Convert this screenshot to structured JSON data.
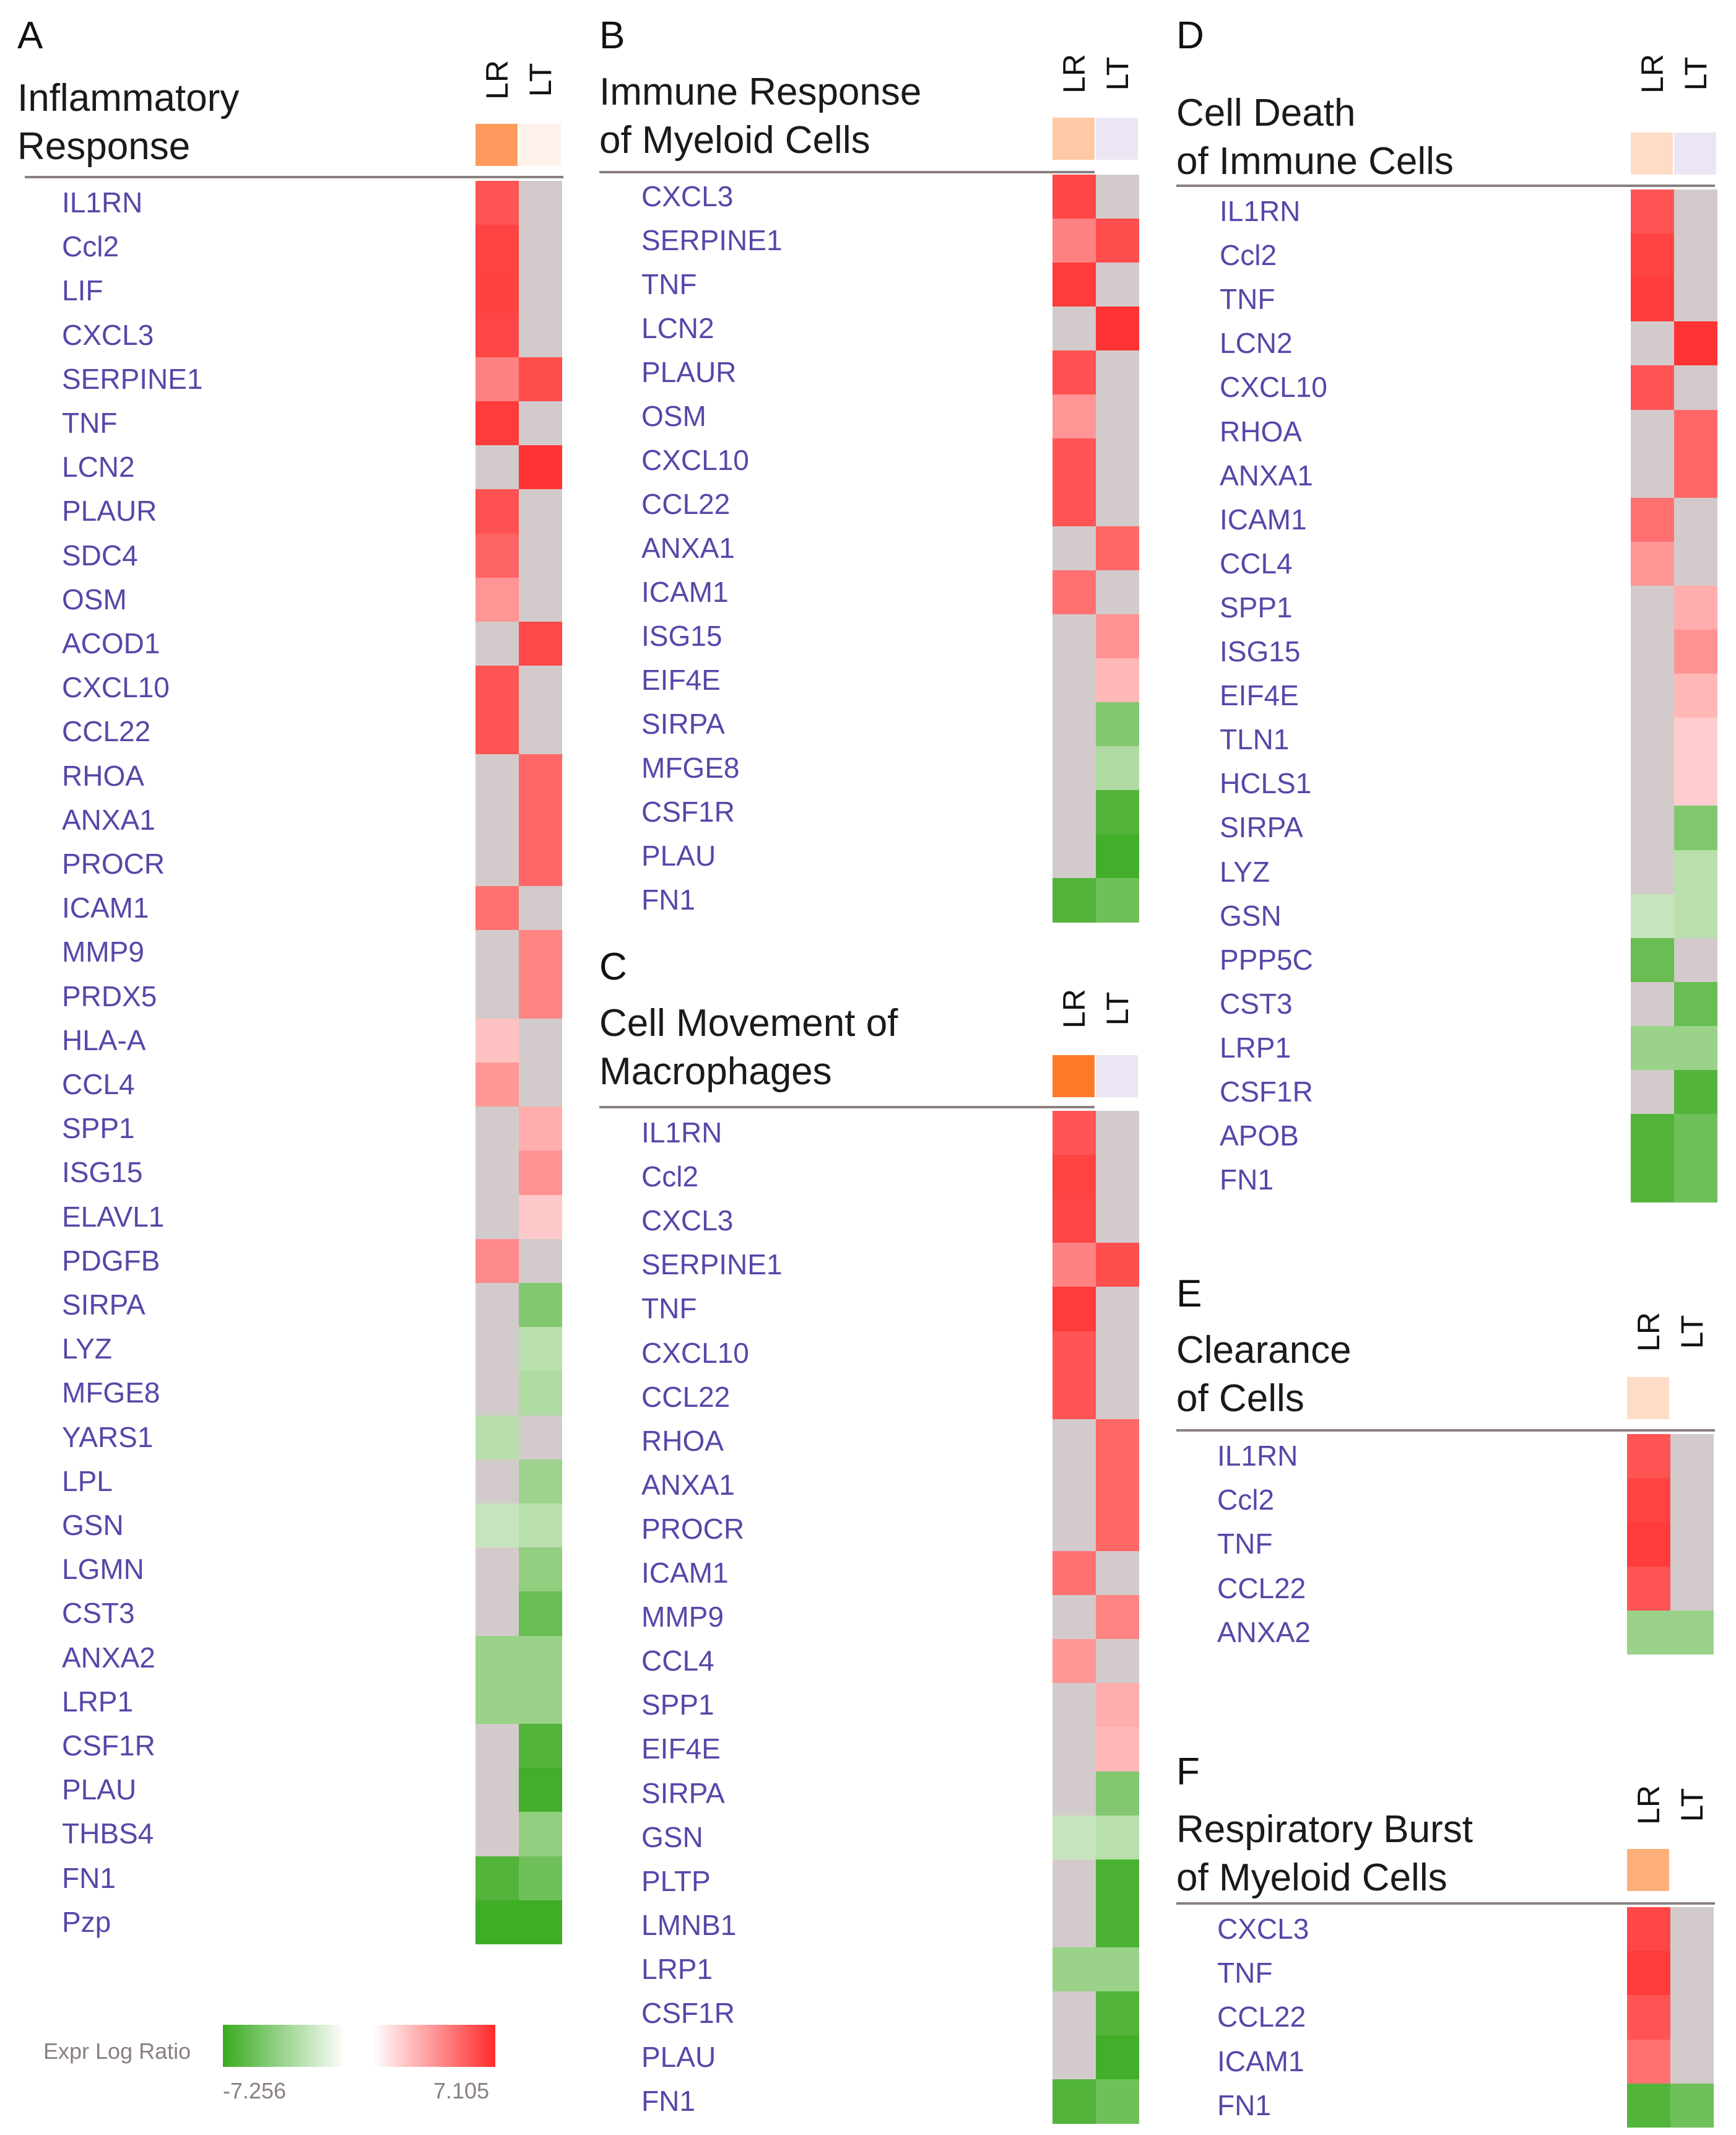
{
  "colors": {
    "neutral": "#d3cbcb",
    "gene_text": "#5548a8",
    "red_full": "#ff2b2b",
    "green_full": "#3aaa20"
  },
  "legend": {
    "label": "Expr Log Ratio",
    "min_label": "-7.256",
    "max_label": "7.105",
    "min": -7.256,
    "max": 7.105
  },
  "chart_data": [
    {
      "panel": "A",
      "title_lines": [
        "Inflammatory",
        "Response"
      ],
      "columns": [
        "LR",
        "LT"
      ],
      "header_colors": [
        "#ff9a5c",
        "#fff2ec"
      ],
      "type": "heatmap",
      "genes": [
        "IL1RN",
        "Ccl2",
        "LIF",
        "CXCL3",
        "SERPINE1",
        "TNF",
        "LCN2",
        "PLAUR",
        "SDC4",
        "OSM",
        "ACOD1",
        "CXCL10",
        "CCL22",
        "RHOA",
        "ANXA1",
        "PROCR",
        "ICAM1",
        "MMP9",
        "PRDX5",
        "HLA-A",
        "CCL4",
        "SPP1",
        "ISG15",
        "ELAVL1",
        "PDGFB",
        "SIRPA",
        "LYZ",
        "MFGE8",
        "YARS1",
        "LPL",
        "GSN",
        "LGMN",
        "CST3",
        "ANXA2",
        "LRP1",
        "CSF1R",
        "PLAU",
        "THBS4",
        "FN1",
        "Pzp"
      ],
      "values": [
        [
          5.6,
          0
        ],
        [
          6.2,
          0
        ],
        [
          6.3,
          0
        ],
        [
          6.1,
          0
        ],
        [
          3.9,
          5.8
        ],
        [
          6.5,
          0
        ],
        [
          0,
          6.8
        ],
        [
          5.7,
          0
        ],
        [
          5.0,
          0
        ],
        [
          3.2,
          0
        ],
        [
          0,
          6.0
        ],
        [
          5.6,
          0
        ],
        [
          5.6,
          0
        ],
        [
          0,
          4.9
        ],
        [
          0,
          4.9
        ],
        [
          0,
          4.9
        ],
        [
          4.5,
          0
        ],
        [
          0,
          3.8
        ],
        [
          0,
          3.8
        ],
        [
          1.5,
          0
        ],
        [
          3.1,
          0
        ],
        [
          0,
          2.3
        ],
        [
          0,
          3.3
        ],
        [
          0,
          1.3
        ],
        [
          3.6,
          0
        ],
        [
          0,
          -4.2
        ],
        [
          0,
          -1.9
        ],
        [
          0,
          -2.3
        ],
        [
          -2.0,
          0
        ],
        [
          0,
          -3.1
        ],
        [
          -1.3,
          -1.9
        ],
        [
          0,
          -3.6
        ],
        [
          0,
          -5.3
        ],
        [
          -3.2,
          -3.2
        ],
        [
          -3.2,
          -3.2
        ],
        [
          0,
          -6.2
        ],
        [
          0,
          -6.9
        ],
        [
          0,
          -3.6
        ],
        [
          -6.2,
          -5.0
        ],
        [
          -7.0,
          -7.0
        ]
      ]
    },
    {
      "panel": "B",
      "title_lines": [
        "Immune Response",
        "of Myeloid Cells"
      ],
      "columns": [
        "LR",
        "LT"
      ],
      "header_colors": [
        "#ffc9a6",
        "#ece6f4"
      ],
      "type": "heatmap",
      "genes": [
        "CXCL3",
        "SERPINE1",
        "TNF",
        "LCN2",
        "PLAUR",
        "OSM",
        "CXCL10",
        "CCL22",
        "ANXA1",
        "ICAM1",
        "ISG15",
        "EIF4E",
        "SIRPA",
        "MFGE8",
        "CSF1R",
        "PLAU",
        "FN1"
      ],
      "values": [
        [
          6.1,
          0
        ],
        [
          3.9,
          5.8
        ],
        [
          6.5,
          0
        ],
        [
          0,
          6.8
        ],
        [
          5.7,
          0
        ],
        [
          3.2,
          0
        ],
        [
          5.6,
          0
        ],
        [
          5.6,
          0
        ],
        [
          0,
          4.9
        ],
        [
          4.5,
          0
        ],
        [
          0,
          3.3
        ],
        [
          0,
          1.9
        ],
        [
          0,
          -4.2
        ],
        [
          0,
          -2.3
        ],
        [
          0,
          -6.2
        ],
        [
          0,
          -6.9
        ],
        [
          -6.2,
          -5.0
        ]
      ]
    },
    {
      "panel": "C",
      "title_lines": [
        "Cell Movement of",
        "Macrophages"
      ],
      "columns": [
        "LR",
        "LT"
      ],
      "header_colors": [
        "#ff7a28",
        "#ece6f4"
      ],
      "type": "heatmap",
      "genes": [
        "IL1RN",
        "Ccl2",
        "CXCL3",
        "SERPINE1",
        "TNF",
        "CXCL10",
        "CCL22",
        "RHOA",
        "ANXA1",
        "PROCR",
        "ICAM1",
        "MMP9",
        "CCL4",
        "SPP1",
        "EIF4E",
        "SIRPA",
        "GSN",
        "PLTP",
        "LMNB1",
        "LRP1",
        "CSF1R",
        "PLAU",
        "FN1"
      ],
      "values": [
        [
          5.6,
          0
        ],
        [
          6.2,
          0
        ],
        [
          6.1,
          0
        ],
        [
          3.9,
          5.8
        ],
        [
          6.5,
          0
        ],
        [
          5.6,
          0
        ],
        [
          5.6,
          0
        ],
        [
          0,
          4.9
        ],
        [
          0,
          4.9
        ],
        [
          0,
          4.9
        ],
        [
          4.5,
          0
        ],
        [
          0,
          3.8
        ],
        [
          3.1,
          0
        ],
        [
          0,
          2.3
        ],
        [
          0,
          1.9
        ],
        [
          0,
          -4.2
        ],
        [
          -1.3,
          -1.9
        ],
        [
          0,
          -6.5
        ],
        [
          0,
          -6.5
        ],
        [
          -3.2,
          -3.2
        ],
        [
          0,
          -6.2
        ],
        [
          0,
          -6.9
        ],
        [
          -6.2,
          -5.0
        ]
      ]
    },
    {
      "panel": "D",
      "title_lines": [
        "Cell Death",
        "of Immune Cells"
      ],
      "columns": [
        "LR",
        "LT"
      ],
      "header_colors": [
        "#ffdcc6",
        "#ece6f4"
      ],
      "type": "heatmap",
      "genes": [
        "IL1RN",
        "Ccl2",
        "TNF",
        "LCN2",
        "CXCL10",
        "RHOA",
        "ANXA1",
        "ICAM1",
        "CCL4",
        "SPP1",
        "ISG15",
        "EIF4E",
        "TLN1",
        "HCLS1",
        "SIRPA",
        "LYZ",
        "GSN",
        "PPP5C",
        "CST3",
        "LRP1",
        "CSF1R",
        "APOB",
        "FN1"
      ],
      "values": [
        [
          5.6,
          0
        ],
        [
          6.2,
          0
        ],
        [
          6.5,
          0
        ],
        [
          0,
          6.8
        ],
        [
          5.6,
          0
        ],
        [
          0,
          4.9
        ],
        [
          0,
          4.9
        ],
        [
          4.5,
          0
        ],
        [
          3.1,
          0
        ],
        [
          0,
          2.3
        ],
        [
          0,
          3.3
        ],
        [
          0,
          1.9
        ],
        [
          0,
          1.1
        ],
        [
          0,
          1.1
        ],
        [
          0,
          -4.2
        ],
        [
          0,
          -1.9
        ],
        [
          -1.3,
          -1.9
        ],
        [
          -5.3,
          0
        ],
        [
          0,
          -5.3
        ],
        [
          -3.2,
          -3.2
        ],
        [
          0,
          -6.2
        ],
        [
          -6.2,
          -5.0
        ],
        [
          -6.2,
          -5.0
        ]
      ]
    },
    {
      "panel": "E",
      "title_lines": [
        "Clearance",
        "of Cells"
      ],
      "columns": [
        "LR",
        "LT"
      ],
      "header_colors": [
        "#ffdcc6",
        "#ffffff"
      ],
      "type": "heatmap",
      "genes": [
        "IL1RN",
        "Ccl2",
        "TNF",
        "CCL22",
        "ANXA2"
      ],
      "values": [
        [
          5.6,
          0
        ],
        [
          6.2,
          0
        ],
        [
          6.5,
          0
        ],
        [
          5.6,
          0
        ],
        [
          -3.2,
          -3.2
        ]
      ]
    },
    {
      "panel": "F",
      "title_lines": [
        "Respiratory Burst",
        "of Myeloid Cells"
      ],
      "columns": [
        "LR",
        "LT"
      ],
      "header_colors": [
        "#ffb07a",
        "#ffffff"
      ],
      "type": "heatmap",
      "genes": [
        "CXCL3",
        "TNF",
        "CCL22",
        "ICAM1",
        "FN1"
      ],
      "values": [
        [
          6.1,
          0
        ],
        [
          6.5,
          0
        ],
        [
          5.6,
          0
        ],
        [
          4.5,
          0
        ],
        [
          -6.2,
          -5.0
        ]
      ]
    }
  ]
}
